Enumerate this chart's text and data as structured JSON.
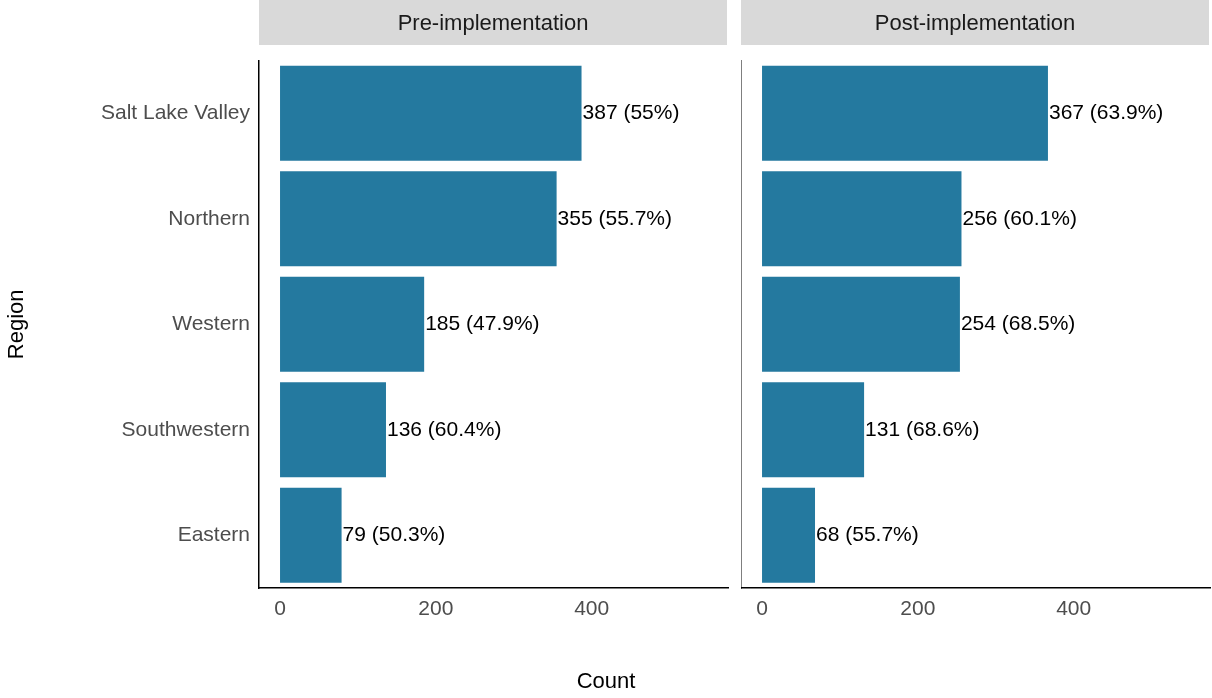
{
  "chart_data": [
    {
      "type": "bar",
      "orientation": "horizontal",
      "title": "Pre-implementation",
      "xlabel": "Count",
      "ylabel": "Region",
      "categories": [
        "Salt Lake Valley",
        "Northern",
        "Western",
        "Southwestern",
        "Eastern"
      ],
      "values": [
        387,
        355,
        185,
        136,
        79
      ],
      "value_labels": [
        "387 (55%)",
        "355 (55.7%)",
        "185 (47.9%)",
        "136 (60.4%)",
        "79 (50.3%)"
      ],
      "color": "#24799f",
      "xlim": [
        -27,
        575
      ],
      "xticks": [
        0,
        200,
        400
      ],
      "grid": false,
      "legend": false
    },
    {
      "type": "bar",
      "orientation": "horizontal",
      "title": "Post-implementation",
      "categories": [
        null,
        null,
        null,
        null,
        null
      ],
      "values": [
        367,
        256,
        254,
        131,
        68
      ],
      "value_labels": [
        "367 (63.9%)",
        "256 (60.1%)",
        "254 (68.5%)",
        "131 (68.6%)",
        "68 (55.7%)"
      ],
      "color": "#24799f",
      "xlim": [
        -27,
        575
      ],
      "xticks": [
        0,
        200,
        400
      ],
      "tick_labels": "x",
      "grid": false,
      "legend": false
    }
  ]
}
